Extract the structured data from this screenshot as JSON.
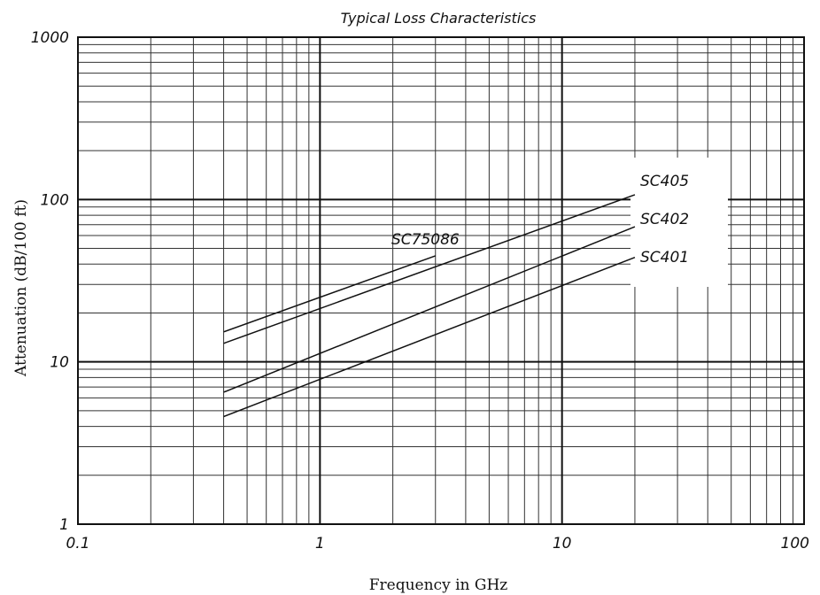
{
  "chart_data": {
    "type": "line",
    "title": "Typical Loss Characteristics",
    "xlabel": "Frequency in GHz",
    "ylabel": "Attenuation (dB/100 ft)",
    "x_scale": "log",
    "y_scale": "log",
    "xlim": [
      0.1,
      100
    ],
    "ylim": [
      1,
      1000
    ],
    "x_ticks": [
      "0.1",
      "1",
      "10",
      "100"
    ],
    "y_ticks": [
      "1",
      "10",
      "100",
      "1000"
    ],
    "grid": true,
    "line_color": "#111111",
    "series": [
      {
        "name": "SC75086",
        "x": [
          0.4,
          3.0
        ],
        "y": [
          15.3,
          45.0
        ]
      },
      {
        "name": "SC405",
        "x": [
          0.4,
          20.0
        ],
        "y": [
          13.0,
          107.0
        ]
      },
      {
        "name": "SC402",
        "x": [
          0.4,
          20.0
        ],
        "y": [
          6.5,
          68.0
        ]
      },
      {
        "name": "SC401",
        "x": [
          0.4,
          20.0
        ],
        "y": [
          4.6,
          44.0
        ]
      }
    ]
  }
}
